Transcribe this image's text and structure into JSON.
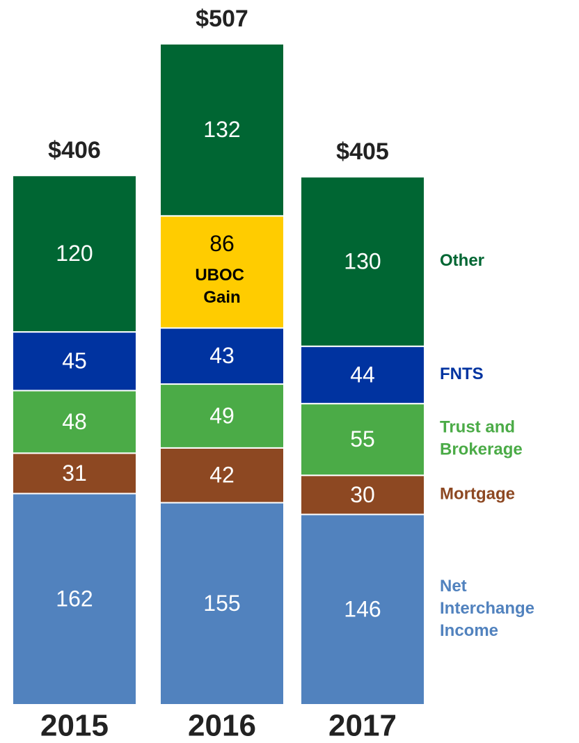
{
  "chart_data": {
    "type": "stacked_bar",
    "categories": [
      "2015",
      "2016",
      "2017"
    ],
    "series": [
      {
        "name": "Net Interchange Income",
        "color": "#5182be",
        "values": [
          162,
          155,
          146
        ]
      },
      {
        "name": "Mortgage",
        "color": "#8d4822",
        "values": [
          31,
          42,
          30
        ]
      },
      {
        "name": "Trust and Brokerage",
        "color": "#4bab47",
        "values": [
          48,
          49,
          55
        ]
      },
      {
        "name": "FNTS",
        "color": "#0033a0",
        "values": [
          45,
          43,
          44
        ]
      },
      {
        "name": "UBOC Gain",
        "color": "#ffcc00",
        "values": [
          null,
          86,
          null
        ]
      },
      {
        "name": "Other",
        "color": "#006633",
        "values": [
          120,
          132,
          130
        ]
      }
    ],
    "totals": [
      406,
      507,
      405
    ],
    "total_labels": [
      "$406",
      "$507",
      "$405"
    ]
  }
}
